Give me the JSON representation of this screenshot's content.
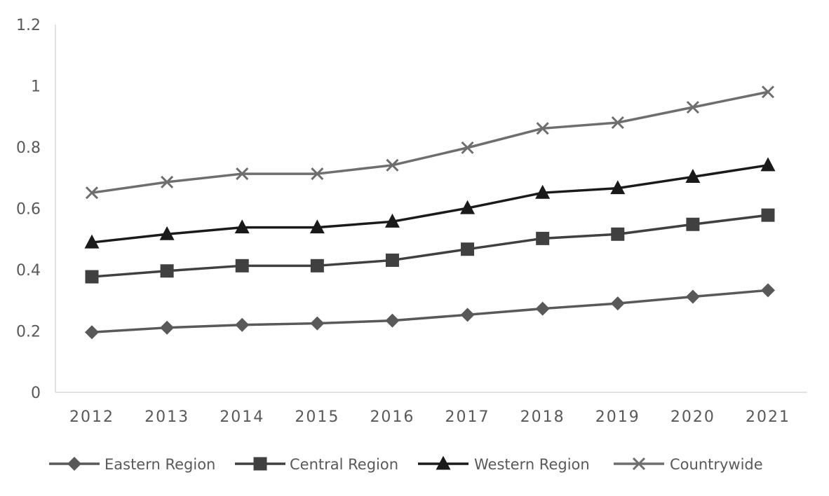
{
  "chart_data": {
    "type": "line",
    "title": "",
    "xlabel": "",
    "ylabel": "",
    "categories": [
      "2012",
      "2013",
      "2014",
      "2015",
      "2016",
      "2017",
      "2018",
      "2019",
      "2020",
      "2021"
    ],
    "ylim": [
      0,
      1.2
    ],
    "yticks": [
      "0",
      "0.2",
      "0.4",
      "0.6",
      "0.8",
      "1",
      "1.2"
    ],
    "grid": false,
    "legend_position": "bottom",
    "series": [
      {
        "name": "Eastern Region",
        "marker": "diamond",
        "color": "#595959",
        "values": [
          0.196,
          0.211,
          0.22,
          0.225,
          0.234,
          0.253,
          0.273,
          0.29,
          0.312,
          0.333
        ]
      },
      {
        "name": "Central Region",
        "marker": "square",
        "color": "#404040",
        "values": [
          0.377,
          0.396,
          0.413,
          0.413,
          0.431,
          0.467,
          0.502,
          0.516,
          0.548,
          0.578
        ]
      },
      {
        "name": "Western Region",
        "marker": "triangle",
        "color": "#1a1a1a",
        "values": [
          0.489,
          0.516,
          0.538,
          0.538,
          0.557,
          0.601,
          0.651,
          0.666,
          0.703,
          0.741
        ]
      },
      {
        "name": "Countrywide",
        "marker": "x",
        "color": "#6e6e6e",
        "values": [
          0.651,
          0.686,
          0.713,
          0.713,
          0.741,
          0.798,
          0.861,
          0.88,
          0.93,
          0.98
        ]
      }
    ]
  }
}
